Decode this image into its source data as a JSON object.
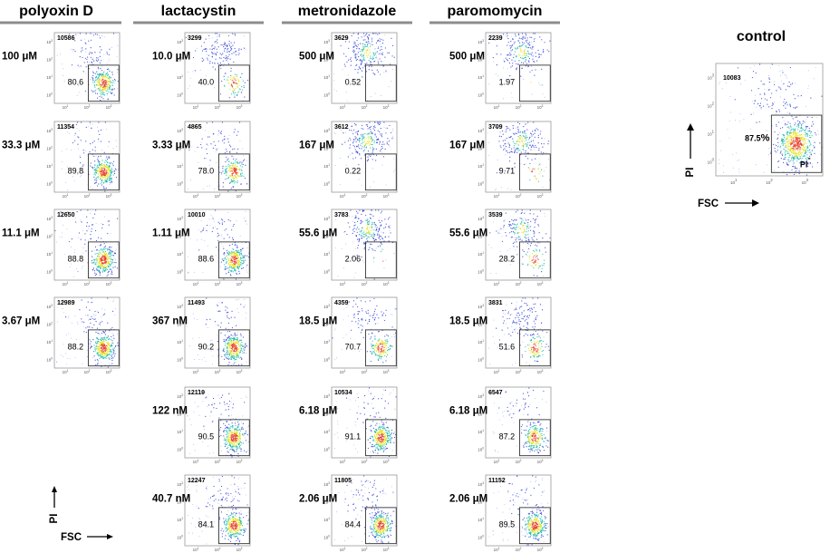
{
  "chart_data": {
    "type": "scatter",
    "colors": {
      "density_low": "#2a3dd6",
      "density_mid": "#18b8a8",
      "density_high": "#e6e21a",
      "density_peak": "#e8402a",
      "gate": "#333333",
      "header_line": "#8c8c8c"
    },
    "groups": [
      {
        "title": "polyoxin D",
        "panels": [
          {
            "concentration": "100 μM",
            "event_count": "10586",
            "pi_negative_percent": "80.6"
          },
          {
            "concentration": "33.3 μM",
            "event_count": "11354",
            "pi_negative_percent": "89.8"
          },
          {
            "concentration": "11.1 μM",
            "event_count": "12650",
            "pi_negative_percent": "88.8"
          },
          {
            "concentration": "3.67 μM",
            "event_count": "12989",
            "pi_negative_percent": "88.2"
          }
        ]
      },
      {
        "title": "lactacystin",
        "panels": [
          {
            "concentration": "10.0 μM",
            "event_count": "3299",
            "pi_negative_percent": "40.0"
          },
          {
            "concentration": "3.33 μM",
            "event_count": "4865",
            "pi_negative_percent": "78.0"
          },
          {
            "concentration": "1.11 μM",
            "event_count": "10010",
            "pi_negative_percent": "88.6"
          },
          {
            "concentration": "367 nM",
            "event_count": "11493",
            "pi_negative_percent": "90.2"
          },
          {
            "concentration": "122 nM",
            "event_count": "12119",
            "pi_negative_percent": "90.5"
          },
          {
            "concentration": "40.7 nM",
            "event_count": "12247",
            "pi_negative_percent": "84.1"
          }
        ]
      },
      {
        "title": "metronidazole",
        "panels": [
          {
            "concentration": "500 μM",
            "event_count": "3629",
            "pi_negative_percent": "0.52"
          },
          {
            "concentration": "167 μM",
            "event_count": "3612",
            "pi_negative_percent": "0.22"
          },
          {
            "concentration": "55.6 μM",
            "event_count": "3783",
            "pi_negative_percent": "2.06"
          },
          {
            "concentration": "18.5 μM",
            "event_count": "4359",
            "pi_negative_percent": "70.7"
          },
          {
            "concentration": "6.18 μM",
            "event_count": "10534",
            "pi_negative_percent": "91.1"
          },
          {
            "concentration": "2.06 μM",
            "event_count": "11805",
            "pi_negative_percent": "84.4"
          }
        ]
      },
      {
        "title": "paromomycin",
        "panels": [
          {
            "concentration": "500 μM",
            "event_count": "2239",
            "pi_negative_percent": "1.97"
          },
          {
            "concentration": "167 μM",
            "event_count": "3709",
            "pi_negative_percent": "9.71"
          },
          {
            "concentration": "55.6 μM",
            "event_count": "3539",
            "pi_negative_percent": "28.2"
          },
          {
            "concentration": "18.5 μM",
            "event_count": "3831",
            "pi_negative_percent": "51.6"
          },
          {
            "concentration": "6.18 μM",
            "event_count": "6547",
            "pi_negative_percent": "87.2"
          },
          {
            "concentration": "2.06 μM",
            "event_count": "11152",
            "pi_negative_percent": "89.5"
          }
        ]
      }
    ],
    "control": {
      "title": "control",
      "event_count": "10083",
      "pi_negative_percent": "87.5",
      "percent_sign": "%",
      "gate_label": "PI",
      "gate_label_superscript": "-",
      "xlabel": "FSC",
      "ylabel": "PI"
    },
    "legend_axes": {
      "xlabel": "FSC",
      "ylabel": "PI"
    },
    "axis": {
      "scale": "log",
      "x_ticks": [
        "10",
        "10",
        "10"
      ],
      "x_tick_exponents": [
        "1",
        "2",
        "3"
      ],
      "y_ticks": [
        "10",
        "10",
        "10",
        "10"
      ],
      "y_tick_exponents": [
        "0",
        "1",
        "2",
        "3"
      ]
    }
  }
}
